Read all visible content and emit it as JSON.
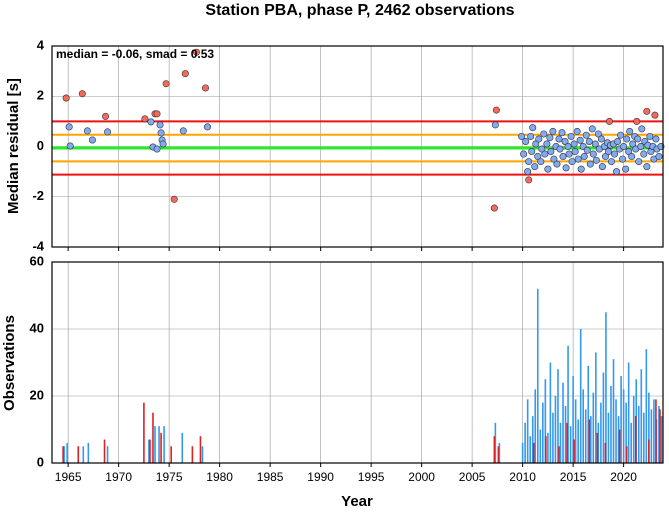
{
  "chart_data": [
    {
      "type": "scatter",
      "title": "Station PBA, phase P, 2462 observations",
      "annotation": "median = -0.06, smad = 0.53",
      "y_label": "Median residual [s]",
      "xlim": [
        1963.4,
        2023.9
      ],
      "xticks": [
        1965,
        1970,
        1975,
        1980,
        1985,
        1990,
        1995,
        2000,
        2005,
        2010,
        2015,
        2020
      ],
      "ylim": [
        -4,
        4
      ],
      "yticks": [
        -4,
        -2,
        0,
        2,
        4
      ],
      "grid": true,
      "reference_lines": [
        {
          "value": -0.06,
          "color": "#22ee22"
        },
        {
          "value": 0.47,
          "color": "#ffa500"
        },
        {
          "value": -0.59,
          "color": "#ffa500"
        },
        {
          "value": 1.0,
          "color": "#ee1111"
        },
        {
          "value": -1.12,
          "color": "#ee1111"
        }
      ],
      "series": [
        {
          "color": "#f46a5a",
          "x": [
            1964.8,
            1966.4,
            1968.7,
            1972.6,
            1973.6,
            1973.8,
            1974.7,
            1975.5,
            1976.6,
            1977.7,
            1978.6,
            2007.4,
            2007.2,
            2010.6,
            2018.6,
            2021.3,
            2022.3,
            2023.1
          ],
          "values": [
            1.93,
            2.1,
            1.2,
            1.1,
            1.3,
            1.3,
            2.5,
            -2.1,
            2.9,
            3.75,
            2.33,
            1.45,
            -2.45,
            -1.33,
            1.0,
            1.0,
            1.4,
            1.25
          ]
        },
        {
          "color": "#80aaf2",
          "x": [
            1965.1,
            1965.2,
            1966.9,
            1967.4,
            1968.9,
            1973.2,
            1973.4,
            1973.8,
            1974.1,
            1974.2,
            1974.3,
            1974.4,
            1976.4,
            1978.8,
            2007.3,
            2009.9,
            2010.1,
            2010.3,
            2010.5,
            2010.6,
            2010.8,
            2010.9,
            2011.0,
            2011.2,
            2011.3,
            2011.5,
            2011.6,
            2011.8,
            2011.9,
            2012.1,
            2012.2,
            2012.4,
            2012.5,
            2012.7,
            2012.8,
            2013.0,
            2013.1,
            2013.3,
            2013.4,
            2013.6,
            2013.7,
            2013.9,
            2014.0,
            2014.2,
            2014.3,
            2014.5,
            2014.6,
            2014.8,
            2014.9,
            2015.1,
            2015.2,
            2015.4,
            2015.5,
            2015.7,
            2015.8,
            2016.0,
            2016.1,
            2016.3,
            2016.4,
            2016.6,
            2016.7,
            2016.9,
            2017.0,
            2017.2,
            2017.3,
            2017.5,
            2017.6,
            2017.8,
            2017.9,
            2018.1,
            2018.2,
            2018.4,
            2018.5,
            2018.7,
            2018.8,
            2019.0,
            2019.1,
            2019.3,
            2019.4,
            2019.6,
            2019.7,
            2019.9,
            2020.0,
            2020.2,
            2020.3,
            2020.5,
            2020.6,
            2020.8,
            2020.9,
            2021.1,
            2021.2,
            2021.4,
            2021.5,
            2021.7,
            2021.8,
            2022.0,
            2022.1,
            2022.3,
            2022.4,
            2022.6,
            2022.7,
            2022.9,
            2023.0,
            2023.2,
            2023.3,
            2023.5,
            2023.7
          ],
          "values": [
            0.78,
            0.02,
            0.62,
            0.26,
            0.58,
            0.98,
            -0.02,
            -0.1,
            0.86,
            0.54,
            0.26,
            0.1,
            0.62,
            0.78,
            0.86,
            0.4,
            -0.3,
            0.2,
            -1.0,
            -0.6,
            0.4,
            -0.2,
            0.75,
            -0.8,
            0.1,
            -0.4,
            0.3,
            -0.6,
            -0.1,
            0.5,
            -0.3,
            0.1,
            -0.9,
            0.35,
            -0.2,
            0.6,
            -0.5,
            0.0,
            -0.7,
            0.3,
            -0.1,
            0.55,
            -0.4,
            0.2,
            -0.85,
            0.0,
            -0.3,
            0.4,
            -0.6,
            0.1,
            -0.2,
            0.6,
            -0.5,
            0.25,
            -0.9,
            0.0,
            -0.4,
            0.45,
            -0.15,
            0.2,
            -0.7,
            0.7,
            -0.3,
            0.1,
            -0.55,
            0.5,
            -0.1,
            0.3,
            -0.8,
            0.0,
            -0.4,
            0.15,
            -0.2,
            0.05,
            -0.6,
            0.1,
            -0.3,
            -1.0,
            0.2,
            -0.1,
            0.45,
            -0.5,
            0.0,
            -0.9,
            0.3,
            -0.2,
            0.6,
            -0.4,
            0.1,
            0.4,
            -0.1,
            0.3,
            -0.6,
            0.0,
            0.7,
            -0.3,
            0.2,
            -0.8,
            0.05,
            0.4,
            -0.2,
            0.0,
            -0.5,
            0.3,
            -0.1,
            -0.4,
            0.0
          ]
        }
      ]
    },
    {
      "type": "bar",
      "y_label": "Observations",
      "x_label": "Year",
      "xlim": [
        1963.4,
        2023.9
      ],
      "xticks": [
        1965,
        1970,
        1975,
        1980,
        1985,
        1990,
        1995,
        2000,
        2005,
        2010,
        2015,
        2020
      ],
      "ylim": [
        0,
        60
      ],
      "yticks": [
        0,
        20,
        40,
        60
      ],
      "grid": true,
      "series": [
        {
          "color": "#3399ee",
          "x": [
            1964.6,
            1964.9,
            1966.5,
            1967.0,
            1968.9,
            1973.0,
            1973.6,
            1974.0,
            1974.5,
            1976.3,
            1978.3,
            2007.3,
            2007.7,
            2010.0,
            2010.25,
            2010.5,
            2010.75,
            2011.0,
            2011.25,
            2011.5,
            2011.75,
            2012.0,
            2012.25,
            2012.5,
            2012.75,
            2013.0,
            2013.25,
            2013.5,
            2013.75,
            2014.0,
            2014.25,
            2014.5,
            2014.75,
            2015.0,
            2015.25,
            2015.5,
            2015.75,
            2016.0,
            2016.25,
            2016.5,
            2016.75,
            2017.0,
            2017.25,
            2017.5,
            2017.75,
            2018.0,
            2018.25,
            2018.5,
            2018.75,
            2019.0,
            2019.25,
            2019.5,
            2019.75,
            2020.0,
            2020.25,
            2020.5,
            2020.75,
            2021.0,
            2021.25,
            2021.5,
            2021.75,
            2022.0,
            2022.25,
            2022.5,
            2022.75,
            2023.0,
            2023.25,
            2023.5,
            2023.75
          ],
          "values": [
            5,
            6,
            5,
            6,
            5,
            7,
            11,
            11,
            11,
            9,
            5,
            12,
            6,
            6,
            12,
            19,
            8,
            14,
            22,
            52,
            10,
            18,
            25,
            9,
            30,
            15,
            20,
            28,
            12,
            24,
            17,
            35,
            11,
            26,
            19,
            13,
            40,
            22,
            16,
            29,
            14,
            21,
            33,
            12,
            18,
            27,
            45,
            15,
            23,
            31,
            19,
            14,
            26,
            22,
            18,
            30,
            12,
            20,
            25,
            17,
            28,
            15,
            34,
            21,
            16,
            19,
            13,
            17,
            14
          ]
        },
        {
          "color": "#dd2222",
          "x": [
            1964.5,
            1966.0,
            1968.6,
            1972.5,
            1973.1,
            1973.4,
            1974.2,
            1975.2,
            1977.3,
            1978.1,
            2007.2,
            2007.6,
            2011.1,
            2012.3,
            2013.6,
            2014.4,
            2015.1,
            2016.6,
            2017.4,
            2018.2,
            2019.6,
            2020.3,
            2021.2,
            2022.5,
            2023.2,
            2023.6
          ],
          "values": [
            5,
            5,
            7,
            18,
            7,
            15,
            9,
            5,
            5,
            8,
            8,
            5,
            6,
            8,
            5,
            12,
            7,
            13,
            9,
            6,
            10,
            5,
            14,
            7,
            19,
            16
          ]
        }
      ]
    }
  ]
}
